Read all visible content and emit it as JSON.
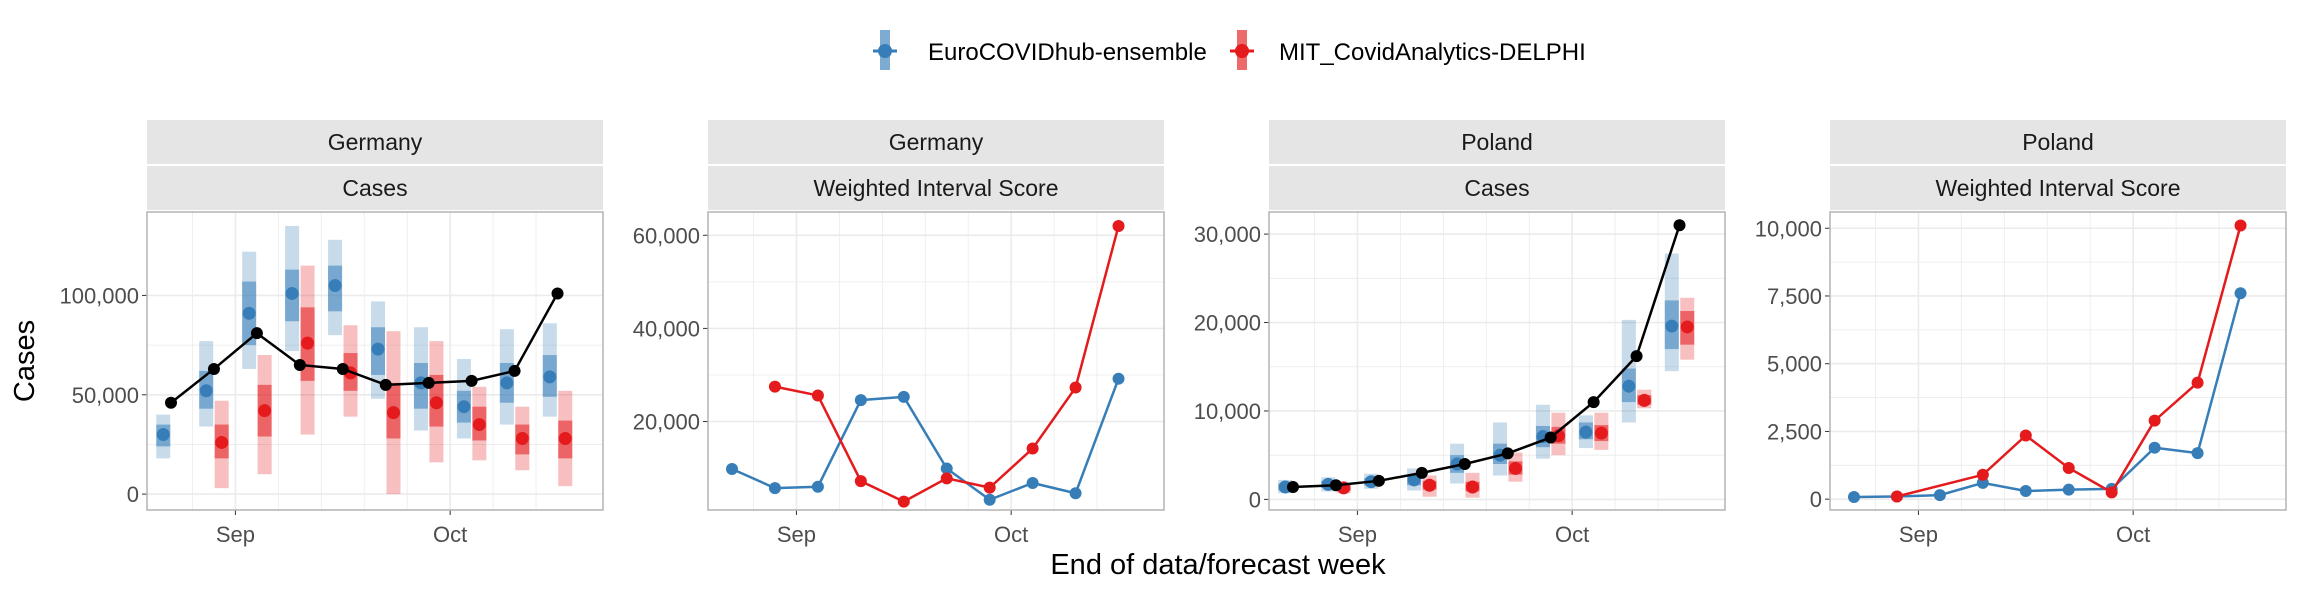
{
  "legend": [
    {
      "name": "EuroCOVIDhub-ensemble",
      "color": "#377EB8"
    },
    {
      "name": "MIT_CovidAnalytics-DELPHI",
      "color": "#E41A1C"
    }
  ],
  "axis": {
    "ylabel": "Cases",
    "xlabel": "End of data/forecast week",
    "xticks": [
      "Sep",
      "Oct"
    ]
  },
  "colors": {
    "ensemble": "#377EB8",
    "delphi": "#E41A1C",
    "observed": "#000000",
    "strip": "#E5E5E5",
    "grid": "#EBEBEB",
    "border": "#B3B3B3"
  },
  "chart_data": [
    {
      "type": "line",
      "strip_top": "Germany",
      "strip_bottom": "Cases",
      "xlabel": "End of data/forecast week",
      "ylabel": "Cases",
      "x_range": [
        0,
        9.5
      ],
      "ylim": [
        -8000,
        142000
      ],
      "yticks": [
        0,
        50000,
        100000
      ],
      "ytick_labels": [
        "0",
        "50,000",
        "100,000"
      ],
      "observed": {
        "x": [
          0,
          1,
          2,
          3,
          4,
          5,
          6,
          7,
          8,
          9
        ],
        "y": [
          46000,
          63000,
          81000,
          65000,
          63000,
          55000,
          56000,
          57000,
          62000,
          101000
        ]
      },
      "series": [
        {
          "name": "EuroCOVIDhub-ensemble",
          "x": [
            0,
            1,
            2,
            3,
            4,
            5,
            6,
            7,
            8,
            9
          ],
          "median": [
            30000,
            52000,
            91000,
            101000,
            105000,
            73000,
            56000,
            44000,
            56000,
            59000
          ],
          "lower50": [
            24000,
            43000,
            75000,
            87000,
            92000,
            60000,
            43000,
            36000,
            46000,
            49000
          ],
          "upper50": [
            35000,
            62000,
            107000,
            113000,
            115000,
            84000,
            66000,
            52000,
            66000,
            70000
          ],
          "lower90": [
            18000,
            34000,
            63000,
            72000,
            80000,
            48000,
            32000,
            28000,
            35000,
            39000
          ],
          "upper90": [
            40000,
            77000,
            122000,
            135000,
            128000,
            97000,
            84000,
            68000,
            83000,
            86000
          ]
        },
        {
          "name": "MIT_CovidAnalytics-DELPHI",
          "x": [
            0,
            1,
            2,
            3,
            4,
            5,
            6,
            7,
            8,
            9
          ],
          "median": [
            null,
            26000,
            42000,
            76000,
            61000,
            41000,
            46000,
            35000,
            28000,
            28000
          ],
          "lower50": [
            null,
            18000,
            29000,
            57000,
            52000,
            28000,
            34000,
            27000,
            20000,
            18000
          ],
          "upper50": [
            null,
            35000,
            55000,
            94000,
            71000,
            56000,
            60000,
            44000,
            35000,
            37000
          ],
          "lower90": [
            null,
            3000,
            10000,
            30000,
            39000,
            0,
            16000,
            17000,
            12000,
            4000
          ],
          "upper90": [
            null,
            47000,
            70000,
            115000,
            85000,
            82000,
            77000,
            54000,
            44000,
            52000
          ]
        }
      ]
    },
    {
      "type": "line",
      "strip_top": "Germany",
      "strip_bottom": "Weighted Interval Score",
      "xlabel": "End of data/forecast week",
      "ylabel": "",
      "x_range": [
        0,
        9.5
      ],
      "ylim": [
        1000,
        65000
      ],
      "yticks": [
        20000,
        40000,
        60000
      ],
      "ytick_labels": [
        "20,000",
        "40,000",
        "60,000"
      ],
      "series": [
        {
          "name": "EuroCOVIDhub-ensemble",
          "x": [
            0,
            1,
            2,
            3,
            4,
            5,
            6,
            7,
            8,
            9
          ],
          "values": [
            9800,
            5700,
            6000,
            24600,
            25300,
            9900,
            3200,
            6800,
            4600,
            29200
          ]
        },
        {
          "name": "MIT_CovidAnalytics-DELPHI",
          "x": [
            1,
            2,
            3,
            4,
            5,
            6,
            7,
            8,
            9
          ],
          "values": [
            27500,
            25600,
            7200,
            2800,
            7800,
            5800,
            14200,
            27300,
            62000
          ]
        }
      ]
    },
    {
      "type": "line",
      "strip_top": "Poland",
      "strip_bottom": "Cases",
      "xlabel": "End of data/forecast week",
      "ylabel": "",
      "x_range": [
        0,
        9.5
      ],
      "ylim": [
        -1200,
        32500
      ],
      "yticks": [
        0,
        10000,
        20000,
        30000
      ],
      "ytick_labels": [
        "0",
        "10,000",
        "20,000",
        "30,000"
      ],
      "observed": {
        "x": [
          0,
          1,
          2,
          3,
          4,
          5,
          6,
          7,
          8,
          9
        ],
        "y": [
          1400,
          1600,
          2100,
          3000,
          4000,
          5200,
          7000,
          11000,
          16200,
          31000
        ]
      },
      "series": [
        {
          "name": "EuroCOVIDhub-ensemble",
          "x": [
            0,
            1,
            2,
            3,
            4,
            5,
            6,
            7,
            8,
            9
          ],
          "median": [
            1400,
            1700,
            2000,
            2200,
            4000,
            5000,
            7100,
            7600,
            12800,
            19600
          ],
          "lower50": [
            1000,
            1300,
            1600,
            1600,
            3000,
            4000,
            5900,
            6800,
            11000,
            17000
          ],
          "upper50": [
            1800,
            2100,
            2400,
            2800,
            5000,
            6300,
            8300,
            8700,
            14800,
            22500
          ],
          "lower90": [
            700,
            900,
            1200,
            1000,
            1800,
            2700,
            4600,
            5800,
            8700,
            14500
          ],
          "upper90": [
            2200,
            2500,
            2900,
            3500,
            6300,
            8700,
            10700,
            9500,
            20300,
            27800
          ]
        },
        {
          "name": "MIT_CovidAnalytics-DELPHI",
          "x": [
            0,
            1,
            2,
            3,
            4,
            5,
            6,
            7,
            8,
            9
          ],
          "median": [
            null,
            1300,
            null,
            1600,
            1400,
            3500,
            7200,
            7500,
            11200,
            19500
          ],
          "lower50": [
            null,
            1000,
            null,
            1100,
            900,
            2800,
            6300,
            6600,
            10700,
            17500
          ],
          "upper50": [
            null,
            1600,
            null,
            2100,
            2000,
            4300,
            8200,
            8400,
            11800,
            21300
          ],
          "lower90": [
            null,
            700,
            null,
            300,
            200,
            2000,
            5000,
            5600,
            10300,
            15800
          ],
          "upper90": [
            null,
            1800,
            null,
            2700,
            3000,
            5300,
            9800,
            9800,
            12400,
            22800
          ]
        }
      ]
    },
    {
      "type": "line",
      "strip_top": "Poland",
      "strip_bottom": "Weighted Interval Score",
      "xlabel": "End of data/forecast week",
      "ylabel": "",
      "x_range": [
        0,
        9.5
      ],
      "ylim": [
        -400,
        10600
      ],
      "yticks": [
        0,
        2500,
        5000,
        7500,
        10000
      ],
      "ytick_labels": [
        "0",
        "2,500",
        "5,000",
        "7,500",
        "10,000"
      ],
      "series": [
        {
          "name": "EuroCOVIDhub-ensemble",
          "x": [
            0,
            1,
            2,
            3,
            4,
            5,
            6,
            7,
            8,
            9
          ],
          "values": [
            80,
            100,
            150,
            600,
            300,
            350,
            380,
            1900,
            1700,
            7600
          ]
        },
        {
          "name": "MIT_CovidAnalytics-DELPHI",
          "x": [
            1,
            3,
            4,
            5,
            6,
            7,
            8,
            9
          ],
          "values": [
            100,
            900,
            2350,
            1150,
            250,
            2900,
            4300,
            10100
          ]
        }
      ]
    }
  ]
}
